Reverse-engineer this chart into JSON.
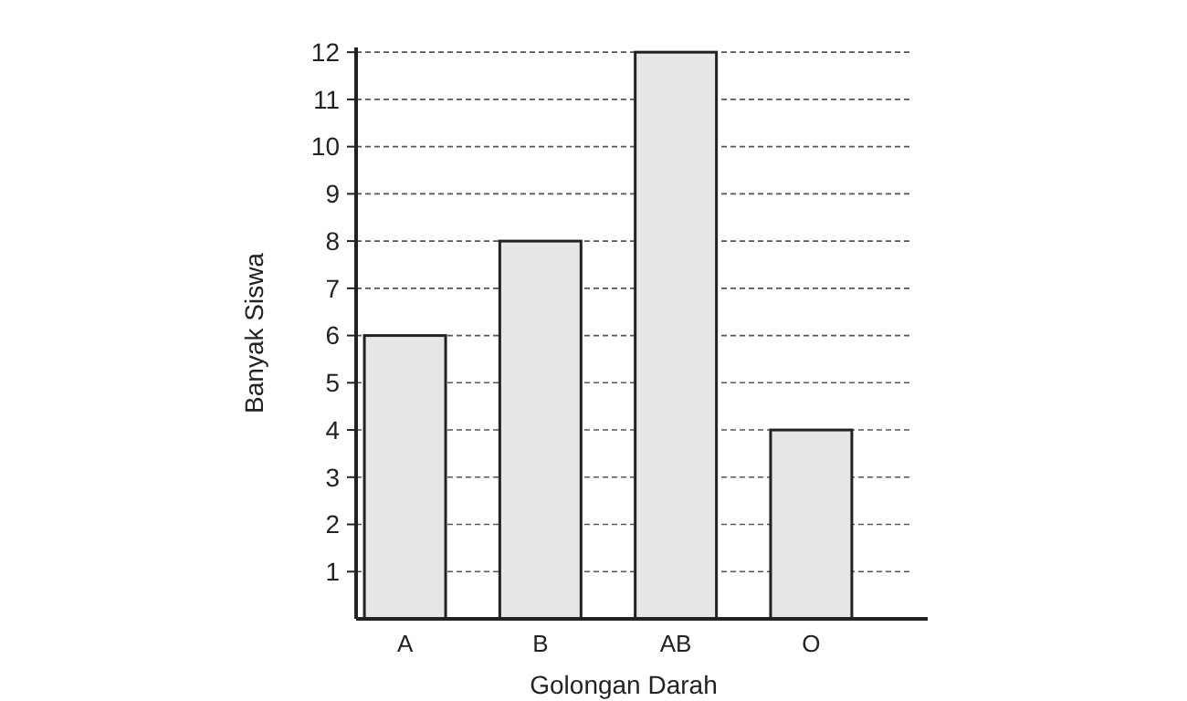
{
  "chart_data": {
    "type": "bar",
    "xlabel": "Golongan Darah",
    "ylabel": "Banyak Siswa",
    "categories": [
      "A",
      "B",
      "AB",
      "O"
    ],
    "values": [
      6,
      8,
      12,
      4
    ],
    "color": "#e6e6e6",
    "ylim": [
      0,
      12.1
    ],
    "yticks": [
      1,
      2,
      3,
      4,
      5,
      6,
      7,
      8,
      9,
      10,
      11,
      12
    ],
    "grid": "y"
  }
}
